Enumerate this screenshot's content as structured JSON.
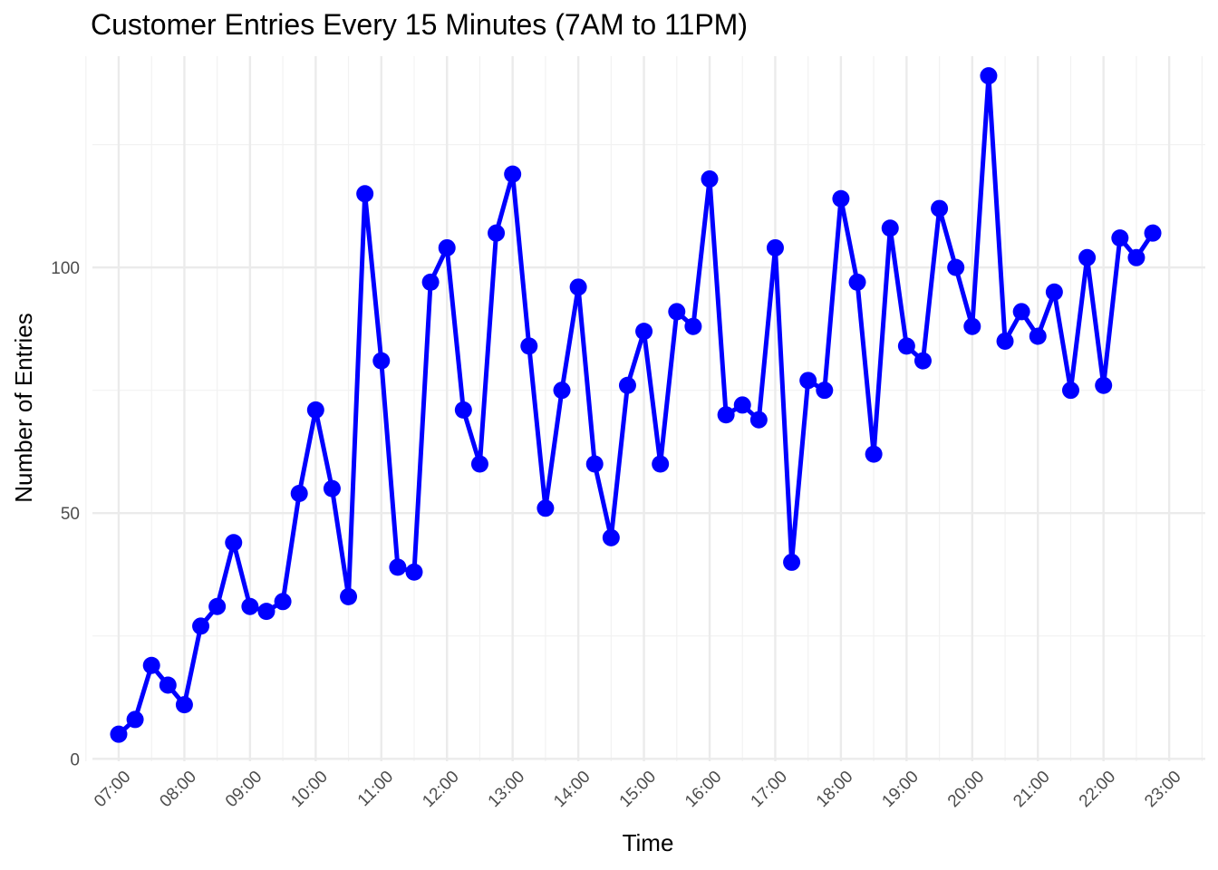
{
  "chart_data": {
    "type": "line",
    "title": "Customer Entries Every 15 Minutes (7AM to 11PM)",
    "xlabel": "Time",
    "ylabel": "Number of Entries",
    "x_tick_labels": [
      "07:00",
      "08:00",
      "09:00",
      "10:00",
      "11:00",
      "12:00",
      "13:00",
      "14:00",
      "15:00",
      "16:00",
      "17:00",
      "18:00",
      "19:00",
      "20:00",
      "21:00",
      "22:00",
      "23:00"
    ],
    "y_tick_values": [
      0,
      50,
      100
    ],
    "y_tick_labels": [
      "0",
      "50",
      "100"
    ],
    "ylim": [
      -0.5,
      143
    ],
    "xlim_hours": [
      6.6,
      23.55
    ],
    "grid": true,
    "line_color": "#0000ff",
    "marker_color": "#0000ff",
    "series": [
      {
        "x": [
          "07:00",
          "07:15",
          "07:30",
          "07:45",
          "08:00",
          "08:15",
          "08:30",
          "08:45",
          "09:00",
          "09:15",
          "09:30",
          "09:45",
          "10:00",
          "10:15",
          "10:30",
          "10:45",
          "11:00",
          "11:15",
          "11:30",
          "11:45",
          "12:00",
          "12:15",
          "12:30",
          "12:45",
          "13:00",
          "13:15",
          "13:30",
          "13:45",
          "14:00",
          "14:15",
          "14:30",
          "14:45",
          "15:00",
          "15:15",
          "15:30",
          "15:45",
          "16:00",
          "16:15",
          "16:30",
          "16:45",
          "17:00",
          "17:15",
          "17:30",
          "17:45",
          "18:00",
          "18:15",
          "18:30",
          "18:45",
          "19:00",
          "19:15",
          "19:30",
          "19:45",
          "20:00",
          "20:15",
          "20:30",
          "20:45",
          "21:00",
          "21:15",
          "21:30",
          "21:45",
          "22:00",
          "22:15",
          "22:30",
          "22:45"
        ],
        "values": [
          5,
          8,
          19,
          15,
          11,
          27,
          31,
          44,
          31,
          30,
          32,
          54,
          71,
          55,
          33,
          115,
          81,
          39,
          38,
          97,
          104,
          71,
          60,
          107,
          119,
          84,
          51,
          75,
          96,
          60,
          45,
          76,
          87,
          60,
          91,
          88,
          118,
          70,
          72,
          69,
          104,
          40,
          77,
          75,
          114,
          97,
          62,
          108,
          84,
          81,
          112,
          100,
          88,
          139,
          85,
          91,
          86,
          95,
          75,
          102,
          76,
          106,
          102,
          107
        ]
      }
    ]
  }
}
